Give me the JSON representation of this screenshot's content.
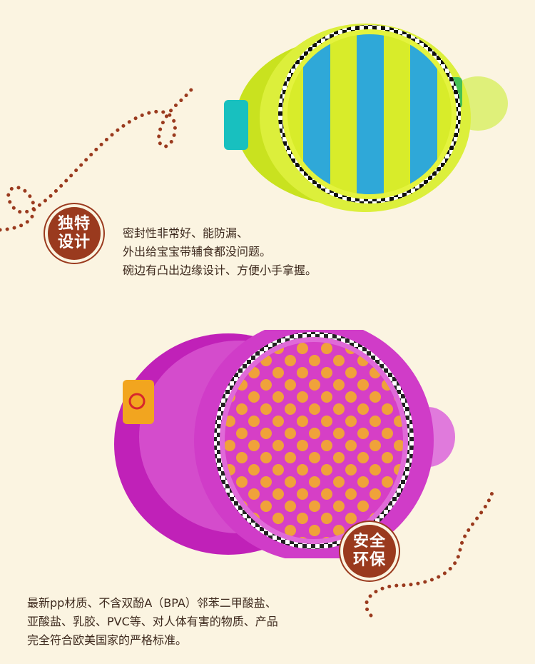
{
  "top": {
    "badge": {
      "line1": "独特",
      "line2": "设计"
    },
    "description": [
      "密封性非常好、能防漏、",
      "外出给宝宝带辅食都没问题。",
      "碗边有凸出边缘设计、方便小手拿握。"
    ]
  },
  "bottom": {
    "badge": {
      "line1": "安全",
      "line2": "环保"
    },
    "description": [
      "最新pp材质、不含双酚A（BPA）邻苯二甲酸盐、",
      "亚酸盐、乳胶、PVC等、对人体有害的物质、产品",
      "完全符合欧美国家的严格标准。"
    ]
  },
  "colors": {
    "background": "#fbf4e1",
    "badge": "#9a3a1e",
    "dots": "#9a3a1e",
    "text": "#3e2a1e",
    "yellow_bowl": "#d8ec2a",
    "blue_stripe": "#2fa8d8",
    "pink_bowl": "#c021b8",
    "orange_dot": "#f0a23a"
  }
}
